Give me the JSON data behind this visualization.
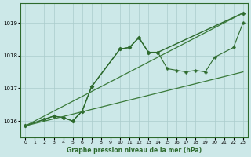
{
  "bg_color": "#cce8e8",
  "grid_color": "#aacccc",
  "title": "Graphe pression niveau de la mer (hPa)",
  "xlim": [
    -0.5,
    23.5
  ],
  "ylim": [
    1015.5,
    1019.6
  ],
  "yticks": [
    1016,
    1017,
    1018,
    1019
  ],
  "xticks": [
    0,
    1,
    2,
    3,
    4,
    5,
    6,
    7,
    8,
    9,
    10,
    11,
    12,
    13,
    14,
    15,
    16,
    17,
    18,
    19,
    20,
    21,
    22,
    23
  ],
  "series": [
    {
      "x": [
        0,
        2,
        3,
        4,
        5,
        6,
        7,
        10,
        11,
        12,
        13,
        14,
        23
      ],
      "y": [
        1015.85,
        1016.05,
        1016.15,
        1016.1,
        1016.0,
        1016.3,
        1017.05,
        1018.2,
        1018.25,
        1018.55,
        1018.1,
        1018.1,
        1019.3
      ],
      "color": "#2d6a2d",
      "marker": "D",
      "markersize": 2.5,
      "linewidth": 1.0
    },
    {
      "x": [
        0,
        2,
        3,
        4,
        5,
        6,
        7,
        10,
        11,
        12,
        13,
        14,
        15,
        16,
        17,
        18,
        19,
        20,
        22,
        23
      ],
      "y": [
        1015.85,
        1016.05,
        1016.15,
        1016.1,
        1016.0,
        1016.3,
        1017.05,
        1018.2,
        1018.25,
        1018.55,
        1018.1,
        1018.1,
        1017.6,
        1017.55,
        1017.5,
        1017.55,
        1017.5,
        1017.95,
        1018.25,
        1019.0
      ],
      "color": "#2d6a2d",
      "marker": "P",
      "markersize": 2.5,
      "linewidth": 0.8
    },
    {
      "x": [
        0,
        23
      ],
      "y": [
        1015.85,
        1019.3
      ],
      "color": "#3a7a3a",
      "marker": null,
      "markersize": 0,
      "linewidth": 0.9
    },
    {
      "x": [
        0,
        23
      ],
      "y": [
        1015.85,
        1017.5
      ],
      "color": "#3a7a3a",
      "marker": null,
      "markersize": 0,
      "linewidth": 0.9
    }
  ]
}
